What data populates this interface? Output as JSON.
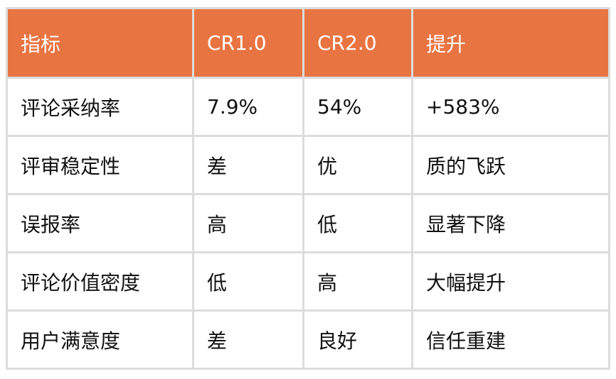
{
  "table": {
    "header_color": "#e87442",
    "headers": [
      "指标",
      "CR1.0",
      "CR2.0",
      "提升"
    ],
    "rows": [
      [
        "评论采纳率",
        "7.9%",
        "54%",
        "+583%"
      ],
      [
        "评审稳定性",
        "差",
        "优",
        "质的飞跃"
      ],
      [
        "误报率",
        "高",
        "低",
        "显著下降"
      ],
      [
        "评论价值密度",
        "低",
        "高",
        "大幅提升"
      ],
      [
        "用户满意度",
        "差",
        "良好",
        "信任重建"
      ]
    ]
  }
}
